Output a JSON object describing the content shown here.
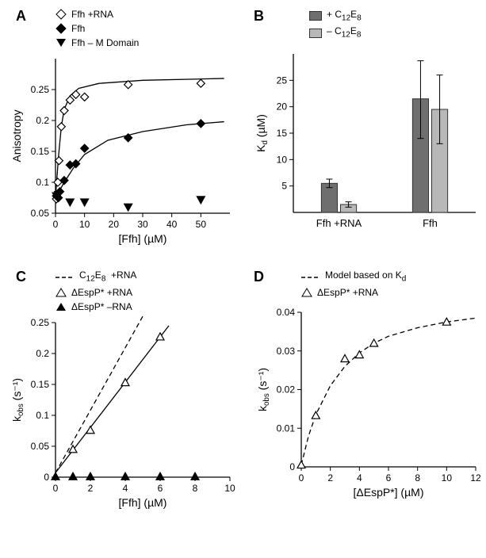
{
  "panelA": {
    "label": "A",
    "type": "scatter",
    "xlabel": "[Ffh] (µM)",
    "ylabel": "Anisotropy",
    "xlim": [
      0,
      60
    ],
    "ylim": [
      0.05,
      0.3
    ],
    "xticks": [
      0,
      10,
      20,
      30,
      40,
      50
    ],
    "yticks": [
      0.05,
      0.1,
      0.15,
      0.2,
      0.25
    ],
    "label_fontsize": 14,
    "tick_fontsize": 12,
    "legend_items": [
      {
        "marker": "diamond-open",
        "label": "Ffh +RNA"
      },
      {
        "marker": "diamond-filled",
        "label": "Ffh"
      },
      {
        "marker": "triangle-down-filled",
        "label": "Ffh – M Domain"
      }
    ],
    "series": [
      {
        "name": "Ffh +RNA",
        "marker": "diamond-open",
        "color": "#000000",
        "fill": "#ffffff",
        "points": [
          {
            "x": 0.3,
            "y": 0.073
          },
          {
            "x": 0.8,
            "y": 0.1
          },
          {
            "x": 1.2,
            "y": 0.135
          },
          {
            "x": 2,
            "y": 0.19
          },
          {
            "x": 3,
            "y": 0.216
          },
          {
            "x": 5,
            "y": 0.233
          },
          {
            "x": 7,
            "y": 0.242
          },
          {
            "x": 10,
            "y": 0.238
          },
          {
            "x": 25,
            "y": 0.258
          },
          {
            "x": 50,
            "y": 0.26
          }
        ],
        "fit": [
          {
            "x": 0,
            "y": 0.075
          },
          {
            "x": 1,
            "y": 0.14
          },
          {
            "x": 2,
            "y": 0.19
          },
          {
            "x": 3,
            "y": 0.218
          },
          {
            "x": 5,
            "y": 0.24
          },
          {
            "x": 8,
            "y": 0.252
          },
          {
            "x": 15,
            "y": 0.26
          },
          {
            "x": 30,
            "y": 0.265
          },
          {
            "x": 58,
            "y": 0.268
          }
        ]
      },
      {
        "name": "Ffh",
        "marker": "diamond-filled",
        "color": "#000000",
        "fill": "#000000",
        "points": [
          {
            "x": 0.3,
            "y": 0.078
          },
          {
            "x": 1,
            "y": 0.075
          },
          {
            "x": 1.5,
            "y": 0.085
          },
          {
            "x": 3,
            "y": 0.103
          },
          {
            "x": 5,
            "y": 0.128
          },
          {
            "x": 7,
            "y": 0.13
          },
          {
            "x": 10,
            "y": 0.155
          },
          {
            "x": 25,
            "y": 0.172
          },
          {
            "x": 50,
            "y": 0.195
          }
        ],
        "fit": [
          {
            "x": 0,
            "y": 0.075
          },
          {
            "x": 3,
            "y": 0.1
          },
          {
            "x": 6,
            "y": 0.122
          },
          {
            "x": 10,
            "y": 0.145
          },
          {
            "x": 18,
            "y": 0.168
          },
          {
            "x": 30,
            "y": 0.182
          },
          {
            "x": 45,
            "y": 0.193
          },
          {
            "x": 58,
            "y": 0.198
          }
        ]
      },
      {
        "name": "Ffh – M Domain",
        "marker": "triangle-down-filled",
        "color": "#000000",
        "fill": "#000000",
        "points": [
          {
            "x": 0.3,
            "y": 0.078
          },
          {
            "x": 1,
            "y": 0.08
          },
          {
            "x": 5,
            "y": 0.068
          },
          {
            "x": 10,
            "y": 0.068
          },
          {
            "x": 25,
            "y": 0.06
          },
          {
            "x": 50,
            "y": 0.072
          }
        ]
      }
    ]
  },
  "panelB": {
    "label": "B",
    "type": "bar",
    "ylabel": "K",
    "ylabel_sub": "d",
    "ylabel_unit": " (µM)",
    "ylim": [
      0,
      30
    ],
    "yticks": [
      5,
      10,
      15,
      20,
      25
    ],
    "categories": [
      "Ffh +RNA",
      "Ffh"
    ],
    "legend_items": [
      {
        "color": "#6f6f6f",
        "label": "+ C₁₂E₈"
      },
      {
        "color": "#b8b8b8",
        "label": "– C₁₂E₈"
      }
    ],
    "bars": [
      {
        "cat": 0,
        "group": 0,
        "value": 5.5,
        "err_lo": 4.7,
        "err_hi": 6.3,
        "color": "#6f6f6f"
      },
      {
        "cat": 0,
        "group": 1,
        "value": 1.5,
        "err_lo": 1.0,
        "err_hi": 2.0,
        "color": "#b8b8b8"
      },
      {
        "cat": 1,
        "group": 0,
        "value": 21.5,
        "err_lo": 14.0,
        "err_hi": 28.7,
        "color": "#6f6f6f"
      },
      {
        "cat": 1,
        "group": 1,
        "value": 19.5,
        "err_lo": 13.0,
        "err_hi": 26.0,
        "color": "#b8b8b8"
      }
    ],
    "bar_width": 0.35,
    "tick_fontsize": 12,
    "label_fontsize": 14,
    "border_color": "#333333"
  },
  "panelC": {
    "label": "C",
    "type": "scatter",
    "xlabel": "[Ffh] (µM)",
    "ylabel": "k",
    "ylabel_sub": "obs",
    "ylabel_unit": " (s⁻¹)",
    "xlim": [
      0,
      10
    ],
    "ylim": [
      0,
      0.25
    ],
    "xticks": [
      0,
      2,
      4,
      6,
      8,
      10
    ],
    "yticks": [
      0,
      0.05,
      0.1,
      0.15,
      0.2,
      0.25
    ],
    "legend_items": [
      {
        "marker": "dash",
        "label": "C₁₂E₈  +RNA"
      },
      {
        "marker": "triangle-up-open",
        "label": "ΔEspP* +RNA"
      },
      {
        "marker": "triangle-up-filled",
        "label": "ΔEspP* –RNA"
      }
    ],
    "series": [
      {
        "name": "C12E8 +RNA",
        "type": "line",
        "dash": "6,4",
        "color": "#000000",
        "points": [
          {
            "x": 0,
            "y": 0.007
          },
          {
            "x": 5,
            "y": 0.26
          }
        ]
      },
      {
        "name": "ΔEspP* +RNA",
        "marker": "triangle-up-open",
        "color": "#000000",
        "fill": "#ffffff",
        "points": [
          {
            "x": 1,
            "y": 0.045
          },
          {
            "x": 2,
            "y": 0.076
          },
          {
            "x": 4,
            "y": 0.153
          },
          {
            "x": 6,
            "y": 0.227
          }
        ],
        "fit": [
          {
            "x": 0,
            "y": 0.007
          },
          {
            "x": 6.5,
            "y": 0.245
          }
        ]
      },
      {
        "name": "ΔEspP* –RNA",
        "marker": "triangle-up-filled",
        "color": "#000000",
        "fill": "#000000",
        "points": [
          {
            "x": 0,
            "y": 0.001
          },
          {
            "x": 1,
            "y": 0.001
          },
          {
            "x": 2,
            "y": 0.001
          },
          {
            "x": 4,
            "y": 0.001
          },
          {
            "x": 6,
            "y": 0.001
          },
          {
            "x": 8,
            "y": 0.001
          }
        ]
      }
    ]
  },
  "panelD": {
    "label": "D",
    "type": "scatter",
    "xlabel": "[ΔEspP*] (µM)",
    "ylabel": "k",
    "ylabel_sub": "obs",
    "ylabel_unit": " (s⁻¹)",
    "xlim": [
      0,
      12
    ],
    "ylim": [
      0,
      0.04
    ],
    "xticks": [
      0,
      2,
      4,
      6,
      8,
      10,
      12
    ],
    "yticks": [
      0,
      0.01,
      0.02,
      0.03,
      0.04
    ],
    "legend_items": [
      {
        "marker": "dash",
        "label": "Model based on Kd"
      },
      {
        "marker": "triangle-up-open",
        "label": "ΔEspP* +RNA"
      }
    ],
    "series": [
      {
        "name": "Model",
        "type": "line",
        "dash": "6,4",
        "color": "#000000",
        "points": [
          {
            "x": 0,
            "y": 0.0005
          },
          {
            "x": 0.5,
            "y": 0.008
          },
          {
            "x": 1,
            "y": 0.0135
          },
          {
            "x": 2,
            "y": 0.021
          },
          {
            "x": 3,
            "y": 0.026
          },
          {
            "x": 4,
            "y": 0.0295
          },
          {
            "x": 5,
            "y": 0.032
          },
          {
            "x": 6,
            "y": 0.0338
          },
          {
            "x": 8,
            "y": 0.036
          },
          {
            "x": 10,
            "y": 0.0375
          },
          {
            "x": 12,
            "y": 0.0385
          }
        ]
      },
      {
        "name": "ΔEspP* +RNA",
        "marker": "triangle-up-open",
        "color": "#000000",
        "fill": "#ffffff",
        "points": [
          {
            "x": 0,
            "y": 0.0005
          },
          {
            "x": 1,
            "y": 0.0133
          },
          {
            "x": 3,
            "y": 0.028
          },
          {
            "x": 4,
            "y": 0.029
          },
          {
            "x": 5,
            "y": 0.032
          },
          {
            "x": 10,
            "y": 0.0375
          }
        ]
      }
    ]
  },
  "colors": {
    "axis": "#000000",
    "background": "#ffffff"
  }
}
